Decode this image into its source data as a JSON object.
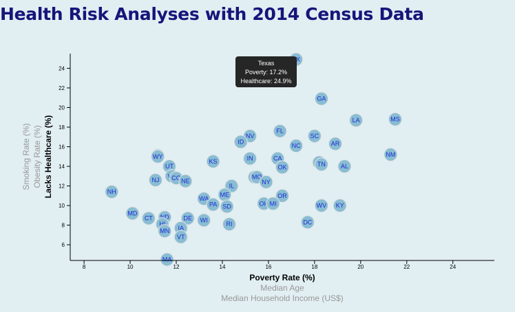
{
  "title": "Health Risk Analyses with 2014 Census Data",
  "tooltip": {
    "state": "Texas",
    "line1": "Poverty: 17.2%",
    "line2": "Healthcare: 24.9%"
  },
  "chart_data": {
    "type": "scatter",
    "title": "Health Risk Analyses with 2014 Census Data",
    "x_axis": {
      "labels": [
        {
          "text": "Poverty Rate (%)",
          "active": true
        },
        {
          "text": "Median Age",
          "active": false
        },
        {
          "text": "Median Household Income (US$)",
          "active": false
        }
      ],
      "ticks": [
        8,
        10,
        12,
        14,
        16,
        18,
        20,
        22,
        24
      ],
      "range": [
        7.4,
        25.8
      ]
    },
    "y_axis": {
      "labels": [
        {
          "text": "Lacks Healthcare (%)",
          "active": true
        },
        {
          "text": "Obesity Rate (%)",
          "active": false
        },
        {
          "text": "Smoking Rate (%)",
          "active": false
        }
      ],
      "ticks": [
        6,
        8,
        10,
        12,
        14,
        16,
        18,
        20,
        22,
        24
      ],
      "range": [
        4.4,
        25.5
      ]
    },
    "points": [
      {
        "abbr": "TX",
        "x": 17.2,
        "y": 24.9
      },
      {
        "abbr": "GA",
        "x": 18.3,
        "y": 20.9
      },
      {
        "abbr": "LA",
        "x": 19.8,
        "y": 18.7
      },
      {
        "abbr": "MS",
        "x": 21.5,
        "y": 18.8
      },
      {
        "abbr": "FL",
        "x": 16.5,
        "y": 17.6
      },
      {
        "abbr": "NV",
        "x": 15.2,
        "y": 17.1
      },
      {
        "abbr": "SC",
        "x": 18.0,
        "y": 17.1
      },
      {
        "abbr": "ID",
        "x": 14.8,
        "y": 16.5
      },
      {
        "abbr": "AR",
        "x": 18.9,
        "y": 16.3
      },
      {
        "abbr": "NC",
        "x": 17.2,
        "y": 16.1
      },
      {
        "abbr": "NM",
        "x": 21.3,
        "y": 15.2
      },
      {
        "abbr": "AK",
        "x": 11.2,
        "y": 15.1
      },
      {
        "abbr": "WY",
        "x": 11.2,
        "y": 15.0
      },
      {
        "abbr": "IN",
        "x": 15.2,
        "y": 14.8
      },
      {
        "abbr": "CA",
        "x": 16.4,
        "y": 14.8
      },
      {
        "abbr": "KS",
        "x": 13.6,
        "y": 14.5
      },
      {
        "abbr": "AZ",
        "x": 18.2,
        "y": 14.4
      },
      {
        "abbr": "TN",
        "x": 18.3,
        "y": 14.2
      },
      {
        "abbr": "UT",
        "x": 11.7,
        "y": 14.0
      },
      {
        "abbr": "AL",
        "x": 19.3,
        "y": 14.0
      },
      {
        "abbr": "OK",
        "x": 16.6,
        "y": 13.9
      },
      {
        "abbr": "VA",
        "x": 11.8,
        "y": 13.0
      },
      {
        "abbr": "MT",
        "x": 15.4,
        "y": 12.9
      },
      {
        "abbr": "MO",
        "x": 15.5,
        "y": 12.9
      },
      {
        "abbr": "CO",
        "x": 12.0,
        "y": 12.8
      },
      {
        "abbr": "NJ",
        "x": 11.1,
        "y": 12.6
      },
      {
        "abbr": "NE",
        "x": 12.4,
        "y": 12.5
      },
      {
        "abbr": "NY",
        "x": 15.9,
        "y": 12.4
      },
      {
        "abbr": "IL",
        "x": 14.4,
        "y": 12.0
      },
      {
        "abbr": "NH",
        "x": 9.2,
        "y": 11.4
      },
      {
        "abbr": "ME",
        "x": 14.1,
        "y": 11.1
      },
      {
        "abbr": "OR",
        "x": 16.6,
        "y": 11.0
      },
      {
        "abbr": "WA",
        "x": 13.2,
        "y": 10.7
      },
      {
        "abbr": "PA",
        "x": 13.6,
        "y": 10.1
      },
      {
        "abbr": "OH",
        "x": 15.8,
        "y": 10.2
      },
      {
        "abbr": "MI",
        "x": 16.2,
        "y": 10.2
      },
      {
        "abbr": "SD",
        "x": 14.2,
        "y": 9.9
      },
      {
        "abbr": "WV",
        "x": 18.3,
        "y": 10.0
      },
      {
        "abbr": "KY",
        "x": 19.1,
        "y": 10.0
      },
      {
        "abbr": "MD",
        "x": 10.1,
        "y": 9.2
      },
      {
        "abbr": "CT",
        "x": 10.8,
        "y": 8.7
      },
      {
        "abbr": "ND",
        "x": 11.5,
        "y": 8.8
      },
      {
        "abbr": "DE",
        "x": 12.5,
        "y": 8.7
      },
      {
        "abbr": "WI",
        "x": 13.2,
        "y": 8.5
      },
      {
        "abbr": "DC",
        "x": 17.7,
        "y": 8.3
      },
      {
        "abbr": "HI",
        "x": 11.4,
        "y": 8.1
      },
      {
        "abbr": "RI",
        "x": 14.3,
        "y": 8.1
      },
      {
        "abbr": "IA",
        "x": 12.2,
        "y": 7.7
      },
      {
        "abbr": "MN",
        "x": 11.5,
        "y": 7.4
      },
      {
        "abbr": "VT",
        "x": 12.2,
        "y": 6.8
      },
      {
        "abbr": "MA",
        "x": 11.6,
        "y": 4.5
      }
    ]
  }
}
